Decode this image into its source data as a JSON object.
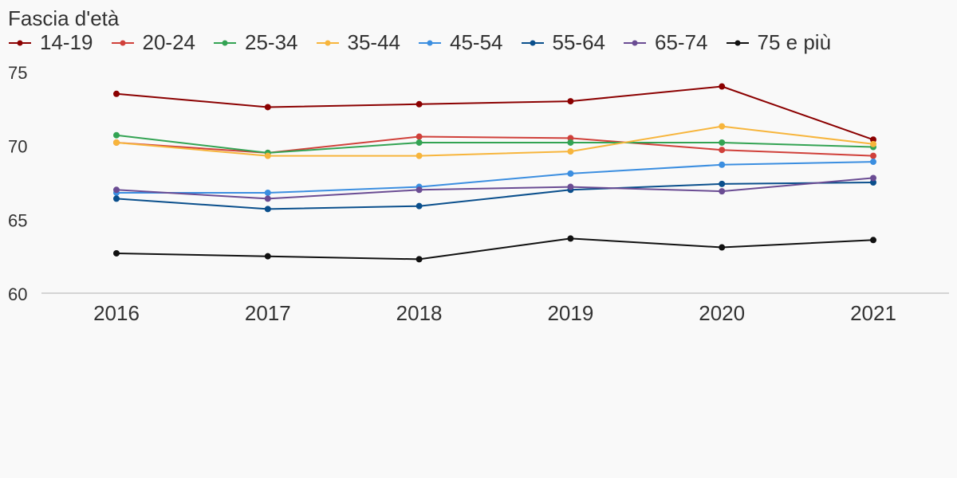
{
  "chart_data": {
    "type": "line",
    "legend_title": "Fascia d'età",
    "legend_position": "top-left",
    "x": [
      "2016",
      "2017",
      "2018",
      "2019",
      "2020",
      "2021"
    ],
    "ylim": [
      60,
      75
    ],
    "yticks": [
      "60",
      "65",
      "70",
      "75"
    ],
    "grid": false,
    "series": [
      {
        "name": "14-19",
        "color": "#8b0000",
        "values": [
          73.5,
          72.6,
          72.8,
          73.0,
          74.0,
          70.4
        ]
      },
      {
        "name": "20-24",
        "color": "#d0403a",
        "values": [
          70.2,
          69.5,
          70.6,
          70.5,
          69.7,
          69.3
        ]
      },
      {
        "name": "25-34",
        "color": "#33a353",
        "values": [
          70.7,
          69.5,
          70.2,
          70.2,
          70.2,
          69.9
        ]
      },
      {
        "name": "35-44",
        "color": "#f7b53c",
        "values": [
          70.2,
          69.3,
          69.3,
          69.6,
          71.3,
          70.1
        ]
      },
      {
        "name": "45-54",
        "color": "#3b8ee0",
        "values": [
          66.8,
          66.8,
          67.2,
          68.1,
          68.7,
          68.9
        ]
      },
      {
        "name": "55-64",
        "color": "#0a4f8c",
        "values": [
          66.4,
          65.7,
          65.9,
          67.0,
          67.4,
          67.5
        ]
      },
      {
        "name": "65-74",
        "color": "#6a4c93",
        "values": [
          67.0,
          66.4,
          67.0,
          67.2,
          66.9,
          67.8
        ]
      },
      {
        "name": "75 e più",
        "color": "#111111",
        "values": [
          62.7,
          62.5,
          62.3,
          63.7,
          63.1,
          63.6
        ]
      }
    ]
  }
}
